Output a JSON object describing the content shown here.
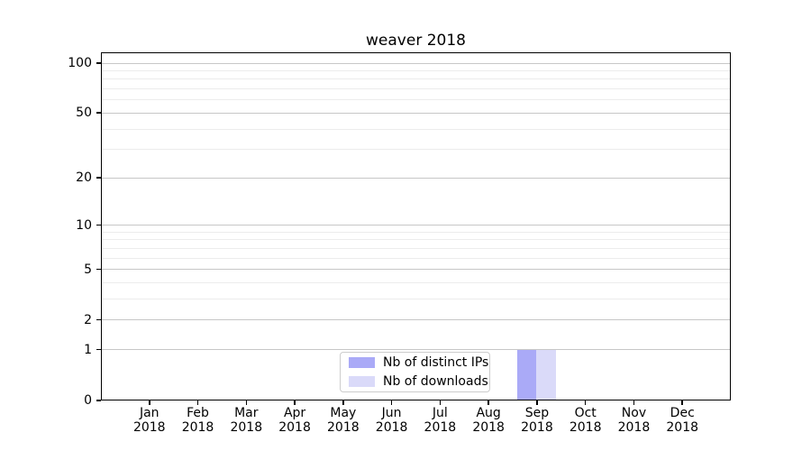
{
  "chart_data": {
    "type": "bar",
    "title": "weaver 2018",
    "categories": [
      "Jan",
      "Feb",
      "Mar",
      "Apr",
      "May",
      "Jun",
      "Jul",
      "Aug",
      "Sep",
      "Oct",
      "Nov",
      "Dec"
    ],
    "category_year": "2018",
    "series": [
      {
        "name": "Nb of distinct IPs",
        "color": "#aaaaf7",
        "values": [
          0,
          0,
          0,
          0,
          0,
          0,
          0,
          0,
          1,
          0,
          0,
          0
        ]
      },
      {
        "name": "Nb of downloads",
        "color": "#dadaf9",
        "values": [
          0,
          0,
          0,
          0,
          0,
          0,
          0,
          0,
          1,
          0,
          0,
          0
        ]
      }
    ],
    "yscale": "log1p",
    "ylabel": "",
    "xlabel": "",
    "ylim": [
      0,
      114
    ],
    "y_ticks": [
      0,
      1,
      2,
      5,
      10,
      20,
      50,
      100
    ],
    "y_minor_gridlines": [
      3,
      4,
      6,
      7,
      8,
      9,
      30,
      40,
      60,
      70,
      80,
      90
    ],
    "grid": true,
    "legend_position": "bottom-center",
    "colors": {
      "axis": "#000000",
      "text": "#000000",
      "grid_major": "#c7c7c7",
      "grid_minor": "#ececec",
      "legend_border": "#cccccc",
      "background": "#ffffff"
    }
  }
}
